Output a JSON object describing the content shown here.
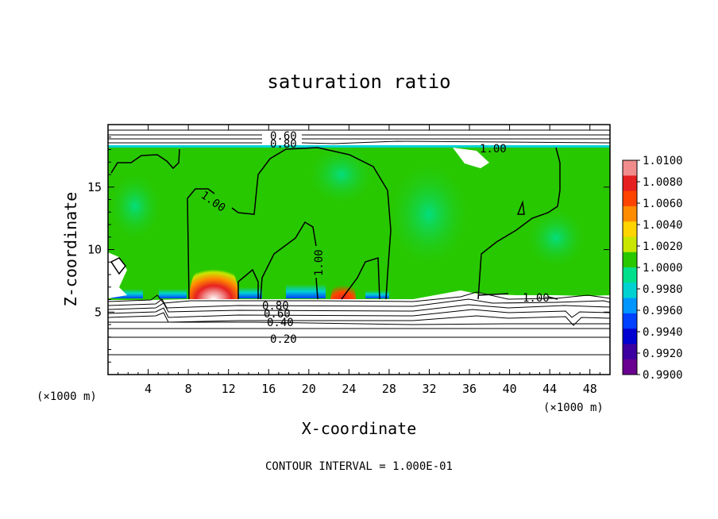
{
  "chart_data": {
    "type": "heatmap",
    "title": "saturation ratio",
    "xlabel": "X-coordinate",
    "ylabel": "Z-coordinate",
    "x_unit": "(×1000 m)",
    "z_unit": "(×1000 m)",
    "xlim": [
      0,
      50
    ],
    "ylim": [
      0,
      20
    ],
    "x_ticks": [
      4,
      8,
      12,
      16,
      20,
      24,
      28,
      32,
      36,
      40,
      44,
      48
    ],
    "y_ticks": [
      5,
      10,
      15
    ],
    "footer": "CONTOUR INTERVAL = 1.000E-01",
    "colorbar": {
      "labels": [
        "1.0100",
        "1.0080",
        "1.0060",
        "1.0040",
        "1.0020",
        "1.0000",
        "0.9980",
        "0.9960",
        "0.9940",
        "0.9920",
        "0.9900"
      ],
      "colors": [
        "#f08c8c",
        "#e62020",
        "#ff4400",
        "#ff8c00",
        "#ffd400",
        "#c8e600",
        "#28c800",
        "#00e08c",
        "#00d2d2",
        "#0096ff",
        "#0040ff",
        "#0000d0",
        "#3c00a0",
        "#6a0090"
      ]
    },
    "contour_labels": [
      "0.60",
      "0.80",
      "1.00",
      "1.00",
      "1.00",
      "1.00",
      "0.80",
      "0.60",
      "0.40",
      "0.20"
    ]
  }
}
